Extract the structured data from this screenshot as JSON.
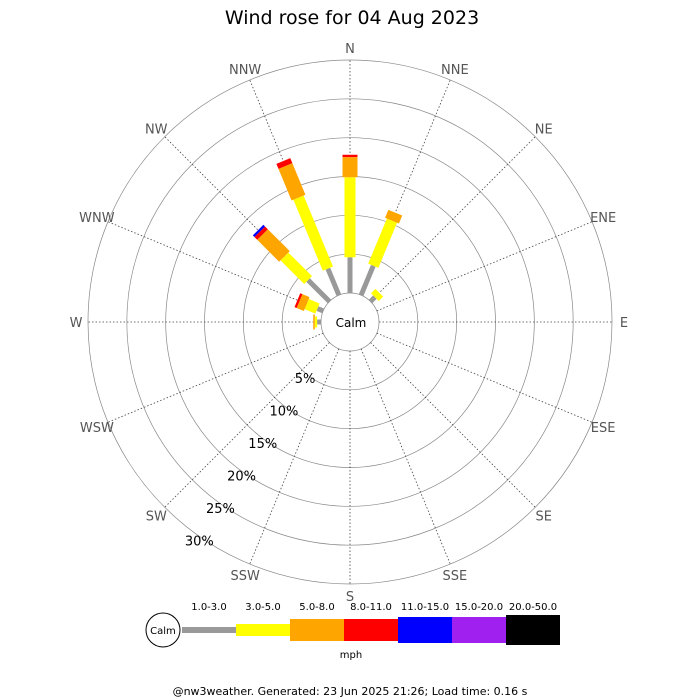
{
  "chart_data": {
    "type": "windrose",
    "title": "Wind rose for 04 Aug 2023",
    "directions": [
      "N",
      "NNE",
      "NE",
      "ENE",
      "E",
      "ESE",
      "SE",
      "SSE",
      "S",
      "SSW",
      "SW",
      "WSW",
      "W",
      "WNW",
      "NW",
      "NNW"
    ],
    "ring_labels": [
      "5%",
      "10%",
      "15%",
      "20%",
      "25%",
      "30%"
    ],
    "rmax": 30,
    "calm_label": "Calm",
    "legend": {
      "bins": [
        {
          "label": "1.0-3.0",
          "color": "#999999"
        },
        {
          "label": "3.0-5.0",
          "color": "#ffff00"
        },
        {
          "label": "5.0-8.0",
          "color": "#ffa500"
        },
        {
          "label": "8.0-11.0",
          "color": "#ff0000"
        },
        {
          "label": "11.0-15.0",
          "color": "#0000ff"
        },
        {
          "label": "15.0-20.0",
          "color": "#a020f0"
        },
        {
          "label": "20.0-50.0",
          "color": "#000000"
        }
      ],
      "unit": "mph",
      "calm": "Calm"
    },
    "series": [
      {
        "dir": "N",
        "values": [
          4.6,
          10.3,
          2.6,
          0.3,
          0,
          0,
          0
        ]
      },
      {
        "dir": "NNE",
        "values": [
          4.1,
          6.3,
          1.1,
          0,
          0,
          0,
          0
        ]
      },
      {
        "dir": "NE",
        "values": [
          0.8,
          0.8,
          0,
          0,
          0,
          0,
          0
        ]
      },
      {
        "dir": "ENE",
        "values": [
          0,
          0,
          0,
          0,
          0,
          0,
          0
        ]
      },
      {
        "dir": "E",
        "values": [
          0,
          0,
          0,
          0,
          0,
          0,
          0
        ]
      },
      {
        "dir": "ESE",
        "values": [
          0,
          0,
          0,
          0,
          0,
          0,
          0
        ]
      },
      {
        "dir": "SE",
        "values": [
          0,
          0,
          0,
          0,
          0,
          0,
          0
        ]
      },
      {
        "dir": "SSE",
        "values": [
          0,
          0,
          0,
          0,
          0,
          0,
          0
        ]
      },
      {
        "dir": "S",
        "values": [
          0,
          0,
          0,
          0,
          0,
          0,
          0
        ]
      },
      {
        "dir": "SSW",
        "values": [
          0,
          0,
          0,
          0,
          0,
          0,
          0
        ]
      },
      {
        "dir": "SW",
        "values": [
          0,
          0,
          0,
          0,
          0,
          0,
          0
        ]
      },
      {
        "dir": "WSW",
        "values": [
          0,
          0,
          0,
          0,
          0,
          0,
          0
        ]
      },
      {
        "dir": "W",
        "values": [
          0.5,
          0.3,
          0.2,
          0,
          0,
          0,
          0
        ]
      },
      {
        "dir": "WNW",
        "values": [
          0.8,
          1.5,
          1.0,
          0.3,
          0,
          0,
          0
        ]
      },
      {
        "dir": "NW",
        "values": [
          3.9,
          4.3,
          4.0,
          0.5,
          0.3,
          0,
          0
        ]
      },
      {
        "dir": "NNW",
        "values": [
          3.7,
          9.9,
          4.4,
          0.7,
          0,
          0,
          0
        ]
      }
    ]
  },
  "footer": "@nw3weather. Generated: 23 Jun 2025 21:26; Load time: 0.16 s"
}
